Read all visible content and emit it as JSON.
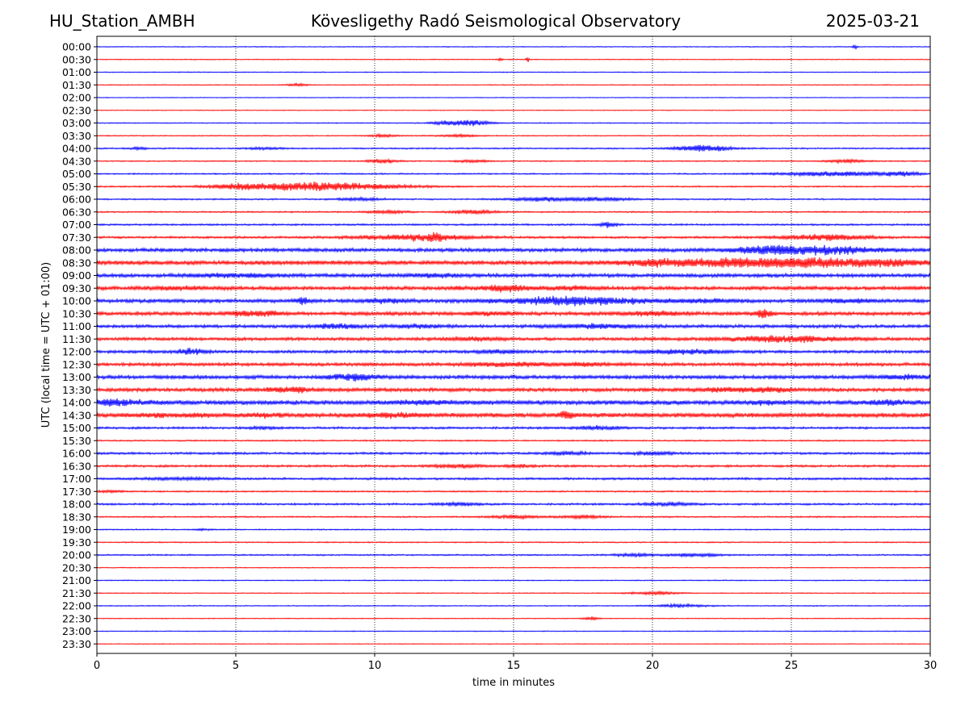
{
  "header": {
    "station": "HU_Station_AMBH",
    "title": "Kövesligethy Radó Seismological Observatory",
    "date": "2025-03-21"
  },
  "colors": {
    "even_rows": "#0000ff",
    "odd_rows": "#ff0000",
    "axes": "#000000"
  },
  "chart_data": {
    "type": "line",
    "title": "Kövesligethy Radó Seismological Observatory",
    "xlabel": "time in minutes",
    "ylabel": "UTC (local time = UTC + 01:00)",
    "xlim": [
      0,
      30
    ],
    "x_ticks": [
      0,
      5,
      10,
      15,
      20,
      25,
      30
    ],
    "grid": "vertical dotted lines at 5-minute intervals",
    "legend": "none",
    "row_labels": [
      "00:00",
      "00:30",
      "01:00",
      "01:30",
      "02:00",
      "02:30",
      "03:00",
      "03:30",
      "04:00",
      "04:30",
      "05:00",
      "05:30",
      "06:00",
      "06:30",
      "07:00",
      "07:30",
      "08:00",
      "08:30",
      "09:00",
      "09:30",
      "10:00",
      "10:30",
      "11:00",
      "11:30",
      "12:00",
      "12:30",
      "13:00",
      "13:30",
      "14:00",
      "14:30",
      "15:00",
      "15:30",
      "16:00",
      "16:30",
      "17:00",
      "17:30",
      "18:00",
      "18:30",
      "19:00",
      "19:30",
      "20:00",
      "20:30",
      "21:00",
      "21:30",
      "22:00",
      "22:30",
      "23:00",
      "23:30"
    ],
    "noise_level": [
      0.6,
      0.6,
      0.6,
      0.6,
      0.5,
      0.5,
      0.7,
      0.7,
      1.0,
      0.8,
      1.0,
      1.0,
      1.0,
      1.0,
      1.2,
      1.5,
      2.5,
      2.8,
      2.5,
      2.5,
      2.5,
      2.5,
      2.2,
      2.2,
      2.0,
      2.2,
      2.5,
      2.5,
      3.0,
      3.0,
      1.5,
      1.0,
      1.5,
      1.5,
      1.5,
      1.0,
      1.3,
      1.0,
      0.8,
      0.8,
      1.0,
      0.6,
      0.7,
      0.6,
      0.7,
      0.6,
      0.6,
      0.5
    ],
    "events": [
      [
        [
          27.3,
          3,
          0.1
        ]
      ],
      [
        [
          15.5,
          5,
          0.05
        ],
        [
          14.5,
          2,
          0.1
        ]
      ],
      [],
      [
        [
          7.2,
          2,
          0.4
        ]
      ],
      [],
      [],
      [
        [
          13.3,
          4,
          0.8
        ],
        [
          12.5,
          1.5,
          0.5
        ]
      ],
      [
        [
          10.3,
          2,
          0.5
        ],
        [
          13,
          1.5,
          0.8
        ]
      ],
      [
        [
          1.5,
          1.5,
          0.3
        ],
        [
          21.8,
          4.5,
          1.0
        ],
        [
          6,
          1.5,
          0.6
        ]
      ],
      [
        [
          10.3,
          2.5,
          0.6
        ],
        [
          13.5,
          2,
          0.6
        ],
        [
          27,
          2.5,
          0.7
        ]
      ],
      [
        [
          26.5,
          3,
          2.0
        ],
        [
          29,
          2.5,
          0.7
        ]
      ],
      [
        [
          7.8,
          6,
          3.0
        ],
        [
          5,
          2,
          0.8
        ]
      ],
      [
        [
          15.9,
          2.5,
          1.2
        ],
        [
          18,
          2.5,
          1.2
        ],
        [
          9.5,
          2,
          0.8
        ]
      ],
      [
        [
          13.5,
          3,
          0.8
        ],
        [
          10.5,
          2,
          0.7
        ]
      ],
      [
        [
          18.4,
          3.5,
          0.3
        ]
      ],
      [
        [
          11.5,
          4,
          2.0
        ],
        [
          12.2,
          4,
          0.3
        ],
        [
          26.3,
          4,
          1.5
        ]
      ],
      [
        [
          26,
          5,
          2.0
        ],
        [
          24,
          4,
          1.0
        ]
      ],
      [
        [
          22,
          4,
          2.5
        ],
        [
          26,
          5,
          3.0
        ],
        [
          20,
          2,
          1.0
        ],
        [
          29,
          2,
          1.0
        ]
      ],
      [
        [
          5,
          2,
          1.5
        ],
        [
          12,
          2,
          1.0
        ]
      ],
      [
        [
          3,
          1.5,
          1.2
        ],
        [
          13,
          1.5,
          0.3
        ],
        [
          14.7,
          4,
          0.8
        ],
        [
          17,
          2,
          1.0
        ]
      ],
      [
        [
          7.4,
          4,
          0.3
        ],
        [
          10.3,
          2,
          0.8
        ],
        [
          17.2,
          5,
          2.5
        ],
        [
          22,
          2,
          1.0
        ],
        [
          27,
          2,
          1.0
        ]
      ],
      [
        [
          5.7,
          3,
          1.0
        ],
        [
          14,
          1.5,
          0.8
        ],
        [
          20,
          2.5,
          1.0
        ],
        [
          24,
          6,
          0.3
        ]
      ],
      [
        [
          8.6,
          3,
          0.8
        ],
        [
          17.8,
          2.5,
          1.5
        ],
        [
          11.5,
          2,
          0.8
        ]
      ],
      [
        [
          24.8,
          4,
          2.0
        ],
        [
          13.5,
          2,
          0.8
        ]
      ],
      [
        [
          3.4,
          4,
          0.5
        ],
        [
          21,
          2.5,
          1.5
        ],
        [
          14.5,
          2,
          0.8
        ]
      ],
      [
        [
          14.8,
          2.5,
          1.5
        ],
        [
          17.5,
          2,
          0.8
        ]
      ],
      [
        [
          9.2,
          4,
          0.8
        ],
        [
          29,
          2,
          1.0
        ]
      ],
      [
        [
          7.3,
          3,
          0.3
        ],
        [
          6.6,
          2.5,
          0.6
        ],
        [
          22.5,
          2,
          1.0
        ],
        [
          24.2,
          2,
          0.8
        ]
      ],
      [
        [
          0.6,
          3.5,
          1.0
        ],
        [
          11.8,
          2,
          1.0
        ],
        [
          24,
          2,
          0.5
        ],
        [
          28.4,
          2.5,
          0.8
        ]
      ],
      [
        [
          16.9,
          4,
          0.3
        ],
        [
          2,
          1.5,
          0.6
        ],
        [
          3.5,
          1.5,
          0.6
        ],
        [
          6,
          1.5,
          0.6
        ],
        [
          10.5,
          2,
          1.0
        ]
      ],
      [
        [
          18,
          2.5,
          0.8
        ],
        [
          6,
          1.5,
          0.5
        ]
      ],
      [],
      [
        [
          17,
          2,
          0.8
        ],
        [
          20,
          2,
          0.8
        ]
      ],
      [
        [
          13,
          2,
          1.0
        ],
        [
          15.2,
          2,
          0.5
        ]
      ],
      [
        [
          3,
          1.5,
          1.5
        ]
      ],
      [
        [
          0.5,
          1.5,
          0.5
        ]
      ],
      [
        [
          13,
          2,
          0.8
        ],
        [
          20.5,
          2,
          1.0
        ]
      ],
      [
        [
          15,
          2,
          1.0
        ],
        [
          17.5,
          2,
          0.8
        ]
      ],
      [
        [
          3.8,
          1,
          0.3
        ]
      ],
      [],
      [
        [
          19.3,
          2,
          0.8
        ],
        [
          21.5,
          2,
          1.0
        ]
      ],
      [],
      [],
      [
        [
          20,
          2,
          1.0
        ]
      ],
      [
        [
          21,
          2,
          1.0
        ]
      ],
      [
        [
          17.8,
          2,
          0.3
        ]
      ],
      [],
      []
    ]
  }
}
